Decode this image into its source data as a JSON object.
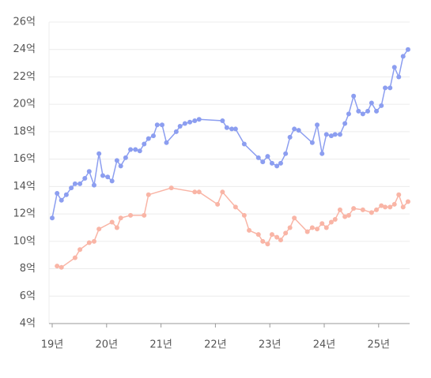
{
  "chart_data": {
    "type": "line",
    "xlim": [
      2019,
      2025.57
    ],
    "xticks": [
      {
        "value": 2019,
        "label": "19년"
      },
      {
        "value": 2020,
        "label": "20년"
      },
      {
        "value": 2021,
        "label": "21년"
      },
      {
        "value": 2022,
        "label": "22년"
      },
      {
        "value": 2023,
        "label": "23년"
      },
      {
        "value": 2024,
        "label": "24년"
      },
      {
        "value": 2025,
        "label": "25년"
      }
    ],
    "ylim": [
      4,
      26
    ],
    "yticks": [
      {
        "value": 4,
        "label": "4억"
      },
      {
        "value": 6,
        "label": "6억"
      },
      {
        "value": 8,
        "label": "8억"
      },
      {
        "value": 10,
        "label": "10억"
      },
      {
        "value": 12,
        "label": "12억"
      },
      {
        "value": 14,
        "label": "14억"
      },
      {
        "value": 16,
        "label": "16억"
      },
      {
        "value": 18,
        "label": "18억"
      },
      {
        "value": 20,
        "label": "20억"
      },
      {
        "value": 22,
        "label": "22억"
      },
      {
        "value": 24,
        "label": "24억"
      },
      {
        "value": 26,
        "label": "26억"
      }
    ],
    "grid": true,
    "series": [
      {
        "color": "#8c9ef0",
        "x": [
          2019.0,
          2019.09,
          2019.17,
          2019.26,
          2019.35,
          2019.42,
          2019.51,
          2019.6,
          2019.68,
          2019.77,
          2019.86,
          2019.93,
          2020.02,
          2020.1,
          2020.19,
          2020.26,
          2020.35,
          2020.44,
          2020.53,
          2020.61,
          2020.69,
          2020.77,
          2020.86,
          2020.93,
          2021.02,
          2021.1,
          2021.28,
          2021.35,
          2021.44,
          2021.53,
          2021.62,
          2021.7,
          2022.13,
          2022.21,
          2022.3,
          2022.37,
          2022.53,
          2022.79,
          2022.87,
          2022.96,
          2023.04,
          2023.13,
          2023.2,
          2023.29,
          2023.37,
          2023.45,
          2023.53,
          2023.78,
          2023.87,
          2023.96,
          2024.04,
          2024.13,
          2024.2,
          2024.29,
          2024.38,
          2024.45,
          2024.54,
          2024.63,
          2024.71,
          2024.8,
          2024.87,
          2024.96,
          2025.05,
          2025.12,
          2025.21,
          2025.29,
          2025.37,
          2025.45,
          2025.54
        ],
        "values": [
          11.7,
          13.5,
          13.0,
          13.4,
          13.9,
          14.2,
          14.2,
          14.6,
          15.1,
          14.1,
          16.4,
          14.8,
          14.7,
          14.4,
          15.9,
          15.5,
          16.1,
          16.7,
          16.7,
          16.6,
          17.1,
          17.5,
          17.7,
          18.5,
          18.5,
          17.2,
          18.0,
          18.4,
          18.6,
          18.7,
          18.8,
          18.9,
          18.8,
          18.3,
          18.2,
          18.2,
          17.1,
          16.1,
          15.8,
          16.2,
          15.7,
          15.5,
          15.7,
          16.4,
          17.6,
          18.2,
          18.1,
          17.2,
          18.5,
          16.4,
          17.8,
          17.7,
          17.8,
          17.8,
          18.6,
          19.3,
          20.6,
          19.5,
          19.3,
          19.5,
          20.1,
          19.5,
          19.9,
          21.2,
          21.2,
          22.7,
          22.0,
          23.5,
          24.0
        ]
      },
      {
        "color": "#f9b5a6",
        "x": [
          2019.09,
          2019.17,
          2019.42,
          2019.51,
          2019.68,
          2019.77,
          2019.86,
          2020.1,
          2020.19,
          2020.26,
          2020.44,
          2020.69,
          2020.77,
          2021.19,
          2021.62,
          2021.7,
          2022.04,
          2022.13,
          2022.37,
          2022.53,
          2022.62,
          2022.79,
          2022.87,
          2022.96,
          2023.04,
          2023.13,
          2023.2,
          2023.29,
          2023.37,
          2023.45,
          2023.69,
          2023.78,
          2023.87,
          2023.96,
          2024.04,
          2024.13,
          2024.2,
          2024.29,
          2024.38,
          2024.45,
          2024.54,
          2024.71,
          2024.87,
          2024.96,
          2025.05,
          2025.12,
          2025.21,
          2025.29,
          2025.37,
          2025.45,
          2025.54
        ],
        "values": [
          8.2,
          8.1,
          8.8,
          9.4,
          9.9,
          10.0,
          10.9,
          11.4,
          11.0,
          11.7,
          11.9,
          11.9,
          13.4,
          13.9,
          13.6,
          13.6,
          12.7,
          13.6,
          12.5,
          11.9,
          10.8,
          10.5,
          10.0,
          9.8,
          10.5,
          10.3,
          10.1,
          10.6,
          11.0,
          11.7,
          10.7,
          11.0,
          10.9,
          11.3,
          11.0,
          11.4,
          11.6,
          12.3,
          11.8,
          11.9,
          12.4,
          12.3,
          12.1,
          12.3,
          12.6,
          12.5,
          12.5,
          12.7,
          13.4,
          12.5,
          12.9
        ]
      }
    ]
  }
}
